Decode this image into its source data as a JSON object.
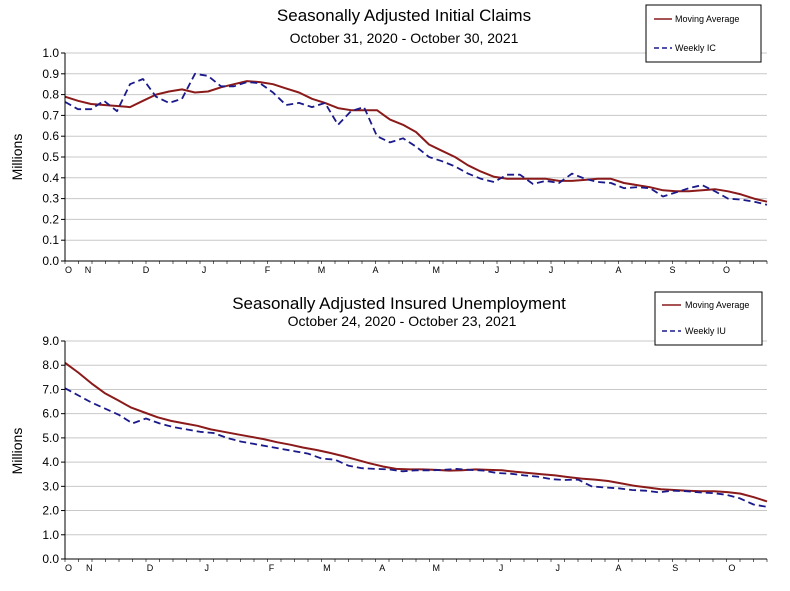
{
  "chart_data": [
    {
      "type": "line",
      "title": "Seasonally Adjusted Initial Claims",
      "subtitle": "October 31, 2020 - October 30, 2021",
      "ylabel": "Millions",
      "xlabel": "",
      "ylim": [
        0,
        1.0
      ],
      "yticks": [
        "0.0",
        "0.1",
        "0.2",
        "0.3",
        "0.4",
        "0.5",
        "0.6",
        "0.7",
        "0.8",
        "0.9",
        "1.0"
      ],
      "x_ticks": [
        {
          "label": "O",
          "week": 0
        },
        {
          "label": "N",
          "week": 1.7
        },
        {
          "label": "D",
          "week": 6
        },
        {
          "label": "J",
          "week": 10.3
        },
        {
          "label": "F",
          "week": 15
        },
        {
          "label": "M",
          "week": 19
        },
        {
          "label": "A",
          "week": 23
        },
        {
          "label": "M",
          "week": 27.5
        },
        {
          "label": "J",
          "week": 32
        },
        {
          "label": "J",
          "week": 36
        },
        {
          "label": "A",
          "week": 41
        },
        {
          "label": "S",
          "week": 45
        },
        {
          "label": "O",
          "week": 49
        }
      ],
      "week_count": 52,
      "grid": "horizontal",
      "legend_position": "top-right",
      "series": [
        {
          "name": "Moving Average",
          "style": "solid",
          "color": "#8b1a1a",
          "values": [
            0.79,
            0.77,
            0.755,
            0.75,
            0.745,
            0.74,
            0.77,
            0.8,
            0.815,
            0.825,
            0.81,
            0.815,
            0.835,
            0.85,
            0.865,
            0.86,
            0.85,
            0.83,
            0.81,
            0.78,
            0.76,
            0.735,
            0.725,
            0.725,
            0.725,
            0.68,
            0.655,
            0.62,
            0.56,
            0.53,
            0.5,
            0.46,
            0.43,
            0.405,
            0.395,
            0.395,
            0.395,
            0.395,
            0.385,
            0.385,
            0.39,
            0.395,
            0.395,
            0.375,
            0.365,
            0.355,
            0.34,
            0.335,
            0.335,
            0.34,
            0.345,
            0.335,
            0.32,
            0.3,
            0.285
          ]
        },
        {
          "name": "Weekly IC",
          "style": "dashed",
          "color": "#1a1a8b",
          "values": [
            0.765,
            0.73,
            0.73,
            0.77,
            0.72,
            0.85,
            0.875,
            0.79,
            0.76,
            0.78,
            0.9,
            0.89,
            0.84,
            0.84,
            0.86,
            0.855,
            0.81,
            0.75,
            0.76,
            0.74,
            0.76,
            0.655,
            0.72,
            0.74,
            0.6,
            0.57,
            0.59,
            0.55,
            0.5,
            0.48,
            0.455,
            0.42,
            0.395,
            0.38,
            0.415,
            0.415,
            0.37,
            0.385,
            0.375,
            0.42,
            0.395,
            0.38,
            0.375,
            0.35,
            0.355,
            0.35,
            0.31,
            0.33,
            0.35,
            0.365,
            0.335,
            0.3,
            0.295,
            0.285,
            0.27
          ]
        }
      ]
    },
    {
      "type": "line",
      "title": "Seasonally Adjusted Insured Unemployment",
      "subtitle": "October 24, 2020 - October 23, 2021",
      "ylabel": "Millions",
      "xlabel": "",
      "ylim": [
        0,
        9.0
      ],
      "yticks": [
        "0.0",
        "1.0",
        "2.0",
        "3.0",
        "4.0",
        "5.0",
        "6.0",
        "7.0",
        "8.0",
        "9.0"
      ],
      "x_ticks": [
        {
          "label": "O",
          "week": 0
        },
        {
          "label": "N",
          "week": 1.8
        },
        {
          "label": "D",
          "week": 6.3
        },
        {
          "label": "J",
          "week": 10.5
        },
        {
          "label": "F",
          "week": 15.3
        },
        {
          "label": "M",
          "week": 19.4
        },
        {
          "label": "A",
          "week": 23.5
        },
        {
          "label": "M",
          "week": 27.5
        },
        {
          "label": "J",
          "week": 32.3
        },
        {
          "label": "J",
          "week": 36.5
        },
        {
          "label": "A",
          "week": 41
        },
        {
          "label": "S",
          "week": 45.2
        },
        {
          "label": "O",
          "week": 49.4
        }
      ],
      "week_count": 52,
      "grid": "horizontal",
      "legend_position": "top-right",
      "series": [
        {
          "name": "Moving Average",
          "style": "solid",
          "color": "#8b1a1a",
          "values": [
            8.1,
            7.7,
            7.25,
            6.85,
            6.55,
            6.25,
            6.05,
            5.85,
            5.7,
            5.6,
            5.5,
            5.35,
            5.25,
            5.15,
            5.05,
            4.95,
            4.82,
            4.72,
            4.6,
            4.5,
            4.38,
            4.25,
            4.1,
            3.95,
            3.82,
            3.72,
            3.7,
            3.7,
            3.68,
            3.65,
            3.66,
            3.7,
            3.68,
            3.66,
            3.6,
            3.55,
            3.5,
            3.45,
            3.38,
            3.32,
            3.28,
            3.22,
            3.12,
            3.02,
            2.95,
            2.88,
            2.85,
            2.82,
            2.8,
            2.8,
            2.76,
            2.7,
            2.55,
            2.38
          ]
        },
        {
          "name": "Weekly IU",
          "style": "dashed",
          "color": "#1a1a8b",
          "values": [
            7.05,
            6.75,
            6.45,
            6.2,
            5.95,
            5.6,
            5.8,
            5.6,
            5.45,
            5.35,
            5.25,
            5.2,
            5.0,
            4.85,
            4.75,
            4.65,
            4.55,
            4.45,
            4.35,
            4.15,
            4.1,
            3.85,
            3.75,
            3.72,
            3.7,
            3.62,
            3.66,
            3.66,
            3.68,
            3.72,
            3.68,
            3.65,
            3.55,
            3.52,
            3.45,
            3.4,
            3.3,
            3.26,
            3.28,
            3.0,
            2.95,
            2.92,
            2.85,
            2.82,
            2.75,
            2.82,
            2.8,
            2.75,
            2.72,
            2.65,
            2.5,
            2.25,
            2.15
          ]
        }
      ]
    }
  ]
}
